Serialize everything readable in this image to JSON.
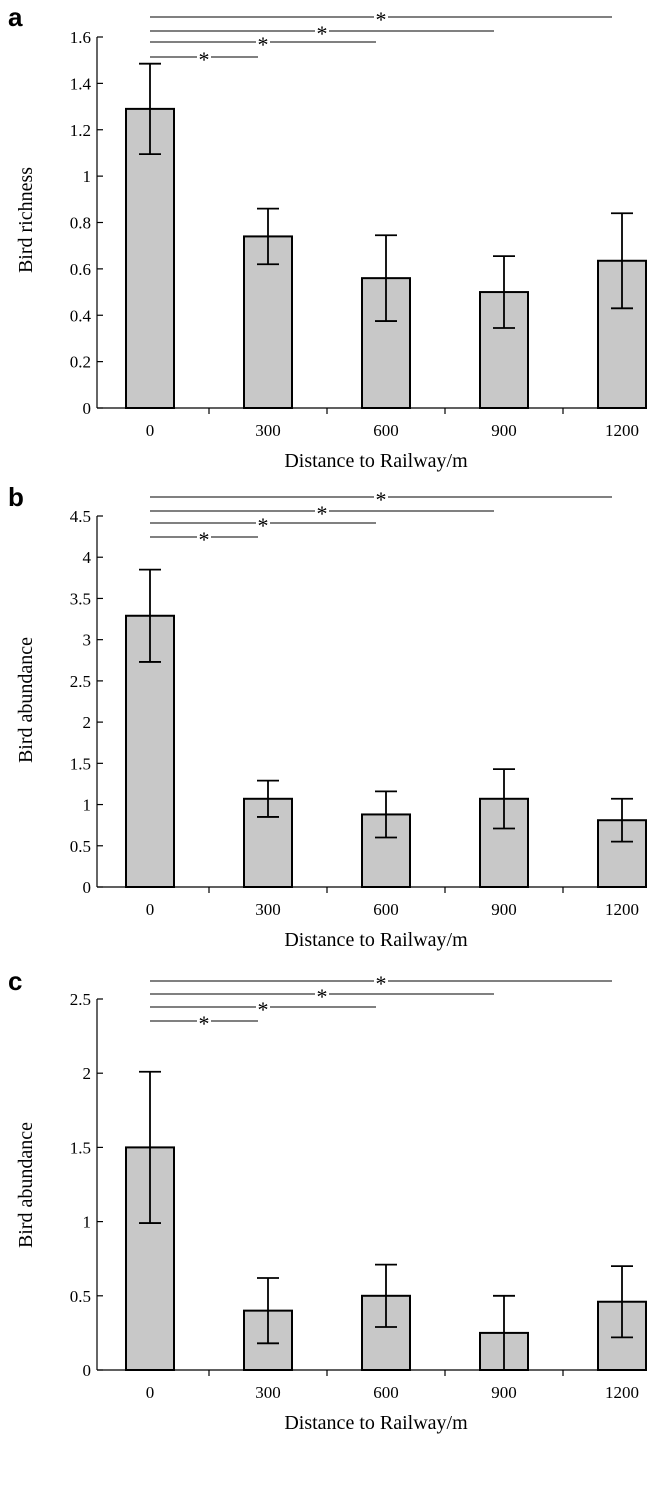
{
  "chart_data": [
    {
      "panel": "a",
      "type": "bar",
      "categories": [
        "0",
        "300",
        "600",
        "900",
        "1200"
      ],
      "values": [
        1.29,
        0.74,
        0.56,
        0.5,
        0.635
      ],
      "error": [
        0.195,
        0.12,
        0.185,
        0.155,
        0.205
      ],
      "xlabel": "Distance to Railway/m",
      "ylabel": "Bird richness",
      "ylim": [
        0,
        1.6
      ],
      "yticks": [
        "0",
        "0.2",
        "0.4",
        "0.6",
        "0.8",
        "1",
        "1.2",
        "1.4",
        "1.6"
      ],
      "grid": false,
      "bar_color": "#c8c8c8",
      "significance": [
        {
          "from": "0",
          "to": "300",
          "label": "*"
        },
        {
          "from": "0",
          "to": "600",
          "label": "*"
        },
        {
          "from": "0",
          "to": "900",
          "label": "*"
        },
        {
          "from": "0",
          "to": "1200",
          "label": "*"
        }
      ]
    },
    {
      "panel": "b",
      "type": "bar",
      "categories": [
        "0",
        "300",
        "600",
        "900",
        "1200"
      ],
      "values": [
        3.29,
        1.07,
        0.88,
        1.07,
        0.81
      ],
      "error": [
        0.56,
        0.22,
        0.28,
        0.36,
        0.26
      ],
      "xlabel": "Distance to Railway/m",
      "ylabel": "Bird abundance",
      "ylim": [
        0,
        4.5
      ],
      "yticks": [
        "0",
        "0.5",
        "1",
        "1.5",
        "2",
        "2.5",
        "3",
        "3.5",
        "4",
        "4.5"
      ],
      "grid": false,
      "bar_color": "#c8c8c8",
      "significance": [
        {
          "from": "0",
          "to": "300",
          "label": "*"
        },
        {
          "from": "0",
          "to": "600",
          "label": "*"
        },
        {
          "from": "0",
          "to": "900",
          "label": "*"
        },
        {
          "from": "0",
          "to": "1200",
          "label": "*"
        }
      ]
    },
    {
      "panel": "c",
      "type": "bar",
      "categories": [
        "0",
        "300",
        "600",
        "900",
        "1200"
      ],
      "values": [
        1.5,
        0.4,
        0.5,
        0.25,
        0.46
      ],
      "error": [
        0.51,
        0.22,
        0.21,
        0.25,
        0.24
      ],
      "xlabel": "Distance to Railway/m",
      "ylabel": "Bird abundance",
      "ylim": [
        0,
        2.5
      ],
      "yticks": [
        "0",
        "0.5",
        "1",
        "1.5",
        "2",
        "2.5"
      ],
      "grid": false,
      "bar_color": "#c8c8c8",
      "significance": [
        {
          "from": "0",
          "to": "300",
          "label": "*"
        },
        {
          "from": "0",
          "to": "600",
          "label": "*"
        },
        {
          "from": "0",
          "to": "900",
          "label": "*"
        },
        {
          "from": "0",
          "to": "1200",
          "label": "*"
        }
      ]
    }
  ]
}
